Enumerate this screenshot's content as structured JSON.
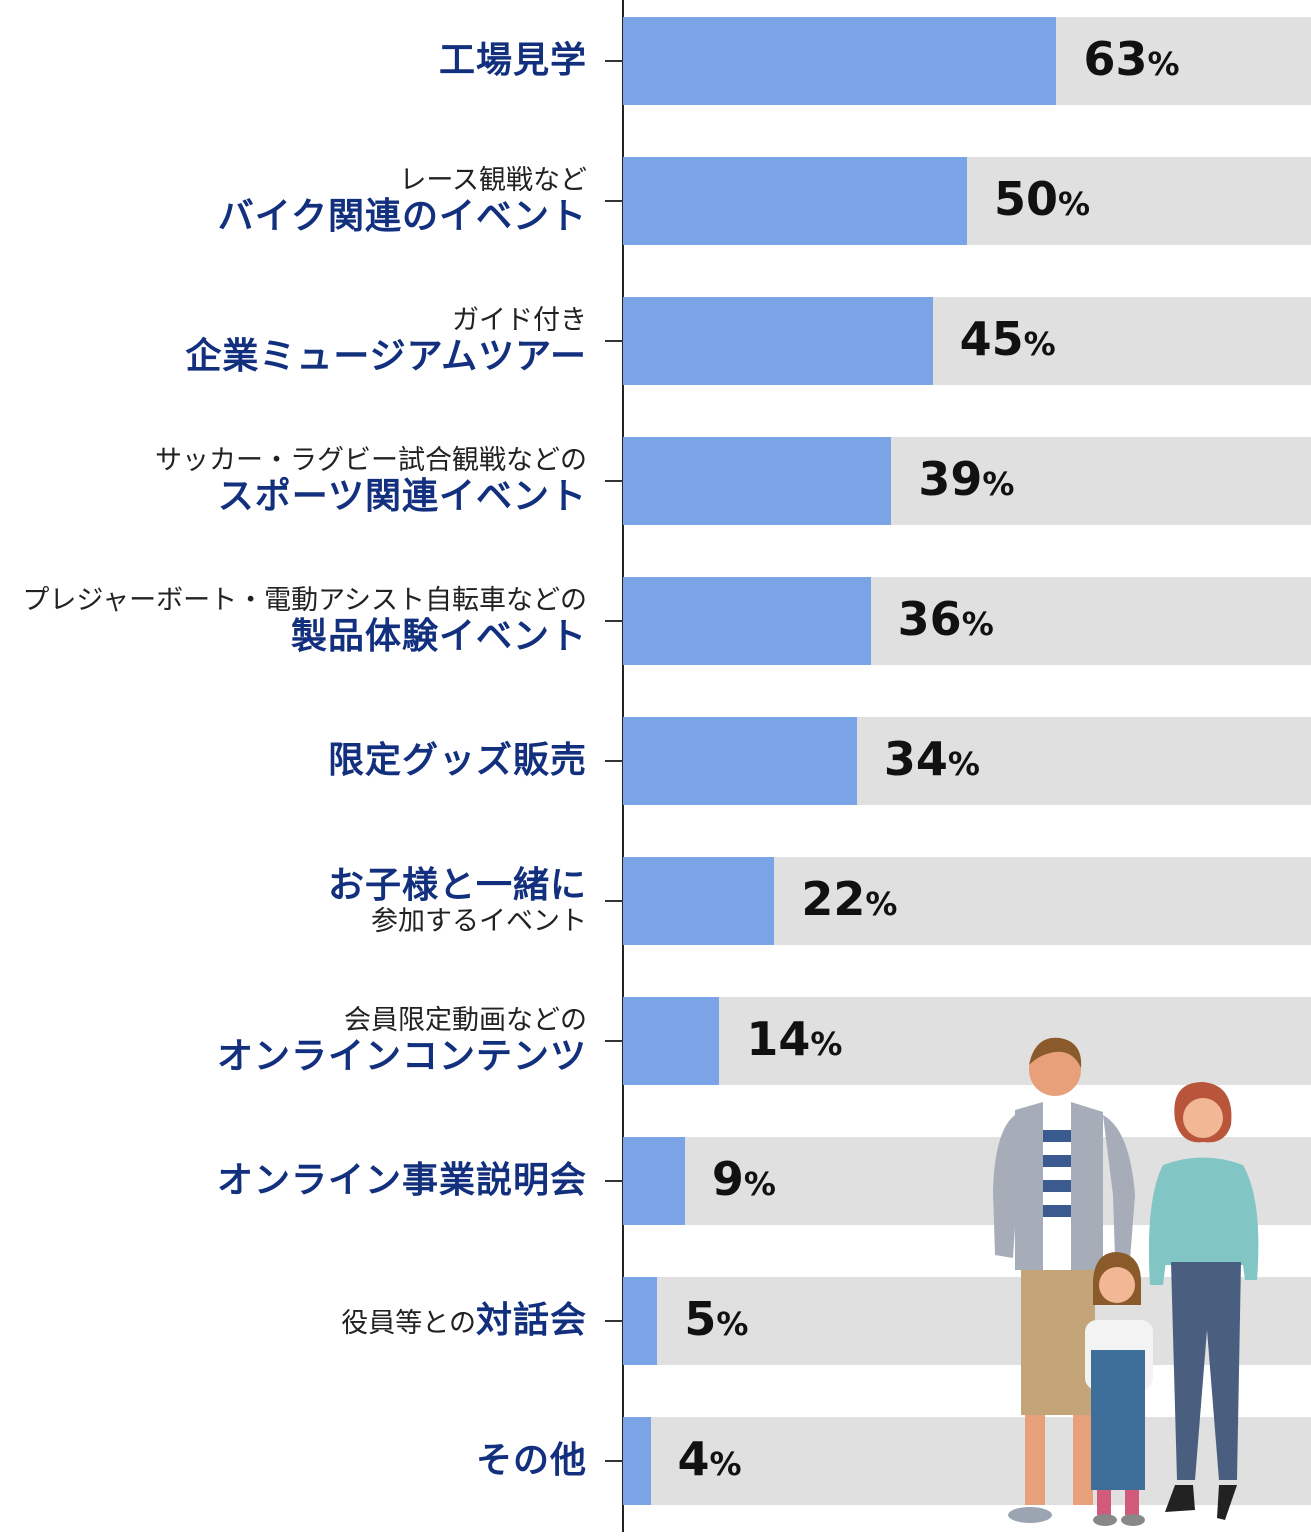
{
  "chart_data": {
    "type": "bar",
    "orientation": "horizontal",
    "xlim": [
      0,
      100
    ],
    "unit": "%",
    "colors": {
      "bar": "#7ba4e6",
      "track": "#e0e0e0",
      "label_bold": "#13307f"
    },
    "categories": [
      {
        "lines": [
          [
            {
              "text": "工場見学",
              "bold": true
            }
          ]
        ],
        "value": 63
      },
      {
        "lines": [
          [
            {
              "text": "レース観戦など",
              "bold": false
            }
          ],
          [
            {
              "text": "バイク関連のイベント",
              "bold": true
            }
          ]
        ],
        "value": 50
      },
      {
        "lines": [
          [
            {
              "text": "ガイド付き",
              "bold": false
            }
          ],
          [
            {
              "text": "企業ミュージアムツアー",
              "bold": true
            }
          ]
        ],
        "value": 45
      },
      {
        "lines": [
          [
            {
              "text": "サッカー・ラグビー試合観戦などの",
              "bold": false
            }
          ],
          [
            {
              "text": "スポーツ関連イベント",
              "bold": true
            }
          ]
        ],
        "value": 39
      },
      {
        "lines": [
          [
            {
              "text": "プレジャーボート・電動アシスト自転車などの",
              "bold": false
            }
          ],
          [
            {
              "text": "製品体験イベント",
              "bold": true
            }
          ]
        ],
        "value": 36
      },
      {
        "lines": [
          [
            {
              "text": "限定グッズ販売",
              "bold": true
            }
          ]
        ],
        "value": 34
      },
      {
        "lines": [
          [
            {
              "text": "お子様と一緒に",
              "bold": true
            }
          ],
          [
            {
              "text": "参加するイベント",
              "bold": false
            }
          ]
        ],
        "value": 22
      },
      {
        "lines": [
          [
            {
              "text": "会員限定動画などの",
              "bold": false
            }
          ],
          [
            {
              "text": "オンラインコンテンツ",
              "bold": true
            }
          ]
        ],
        "value": 14
      },
      {
        "lines": [
          [
            {
              "text": "オンライン事業説明会",
              "bold": true
            }
          ]
        ],
        "value": 9
      },
      {
        "lines": [
          [
            {
              "text": "役員等との",
              "bold": false
            },
            {
              "text": "対話会",
              "bold": true
            }
          ]
        ],
        "value": 5
      },
      {
        "lines": [
          [
            {
              "text": "その他",
              "bold": true
            }
          ]
        ],
        "value": 4
      }
    ]
  }
}
